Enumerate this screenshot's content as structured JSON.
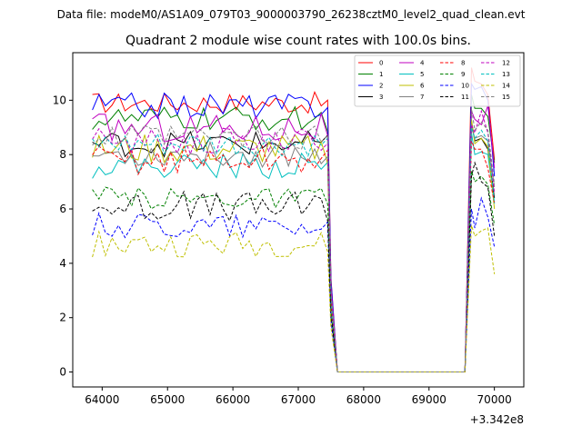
{
  "figure": {
    "suptitle": "Data file: modeM0/AS1A09_079T03_9000003790_26238cztM0_level2_quad_clean.evt",
    "title": "Quadrant 2 module wise count rates with 100.0s bins.",
    "x_offset_label": "+3.342e8"
  },
  "chart_data": {
    "type": "line",
    "title": "Quadrant 2 module wise count rates with 100.0s bins.",
    "xlabel": "",
    "ylabel": "",
    "x_offset": 334200000,
    "xlim": [
      63550,
      70450
    ],
    "ylim": [
      -0.55,
      11.75
    ],
    "xticks": [
      64000,
      65000,
      66000,
      67000,
      68000,
      69000,
      70000
    ],
    "xtick_labels": [
      "64000",
      "65000",
      "66000",
      "67000",
      "68000",
      "69000",
      "70000"
    ],
    "yticks": [
      0,
      2,
      4,
      6,
      8,
      10
    ],
    "ytick_labels": [
      "0",
      "2",
      "4",
      "6",
      "8",
      "10"
    ],
    "legend_position": "top-right",
    "legend_columns": 4,
    "segments": {
      "active1": [
        63850,
        67450
      ],
      "drop": [
        67500,
        67600
      ],
      "zero": [
        67600,
        69550
      ],
      "active2": [
        69550,
        70150
      ],
      "bin_width": 100
    },
    "series": [
      {
        "name": "0",
        "color": "#ff0000",
        "style": "solid",
        "level": 9.9,
        "amp": 0.25,
        "end": [
          11.2,
          10.7,
          10.6,
          10.2,
          7.8
        ]
      },
      {
        "name": "1",
        "color": "#008000",
        "style": "solid",
        "level": 9.3,
        "amp": 0.3,
        "end": [
          10.2,
          9.7,
          9.7,
          9.4,
          7.7
        ]
      },
      {
        "name": "2",
        "color": "#0000ff",
        "style": "solid",
        "level": 9.8,
        "amp": 0.3,
        "end": [
          10.6,
          10.4,
          10.5,
          10.0,
          7.2
        ]
      },
      {
        "name": "3",
        "color": "#000000",
        "style": "solid",
        "level": 8.4,
        "amp": 0.3,
        "end": [
          9.2,
          8.5,
          8.6,
          8.2,
          6.4
        ]
      },
      {
        "name": "4",
        "color": "#bf00bf",
        "style": "solid",
        "level": 9.0,
        "amp": 0.35,
        "end": [
          9.6,
          9.3,
          9.1,
          9.8,
          7.5
        ]
      },
      {
        "name": "5",
        "color": "#00bfbf",
        "style": "solid",
        "level": 7.6,
        "amp": 0.3,
        "end": [
          8.8,
          8.0,
          8.1,
          8.0,
          6.2
        ]
      },
      {
        "name": "6",
        "color": "#bfbf00",
        "style": "solid",
        "level": 8.2,
        "amp": 0.35,
        "end": [
          9.3,
          8.4,
          8.6,
          8.3,
          6.0
        ]
      },
      {
        "name": "7",
        "color": "#808080",
        "style": "solid",
        "level": 8.0,
        "amp": 0.3,
        "end": [
          9.0,
          8.6,
          8.7,
          8.5,
          6.8
        ]
      },
      {
        "name": "8",
        "color": "#ff0000",
        "style": "dashed",
        "level": 7.8,
        "amp": 0.35,
        "end": [
          8.5,
          8.2,
          8.2,
          7.5,
          6.2
        ]
      },
      {
        "name": "9",
        "color": "#008000",
        "style": "dashed",
        "level": 6.4,
        "amp": 0.25,
        "end": [
          7.4,
          7.0,
          7.2,
          6.9,
          5.4
        ]
      },
      {
        "name": "10",
        "color": "#0000ff",
        "style": "dashed",
        "level": 5.4,
        "amp": 0.3,
        "end": [
          6.0,
          5.3,
          6.4,
          5.7,
          4.6
        ]
      },
      {
        "name": "11",
        "color": "#000000",
        "style": "dashed",
        "level": 6.1,
        "amp": 0.35,
        "end": [
          7.2,
          7.7,
          7.0,
          6.8,
          5.0
        ]
      },
      {
        "name": "12",
        "color": "#bf00bf",
        "style": "dashed",
        "level": 8.5,
        "amp": 0.3,
        "end": [
          9.1,
          8.8,
          9.6,
          8.8,
          6.6
        ]
      },
      {
        "name": "13",
        "color": "#00bfbf",
        "style": "dashed",
        "level": 8.3,
        "amp": 0.3,
        "end": [
          9.0,
          8.6,
          8.9,
          8.5,
          6.2
        ]
      },
      {
        "name": "14",
        "color": "#bfbf00",
        "style": "dashed",
        "level": 4.7,
        "amp": 0.3,
        "end": [
          5.4,
          5.0,
          5.2,
          5.3,
          3.6
        ]
      },
      {
        "name": "15",
        "color": "#808080",
        "style": "dashed",
        "level": 8.6,
        "amp": 0.3,
        "end": [
          9.7,
          8.9,
          9.2,
          8.9,
          6.9
        ]
      }
    ]
  }
}
